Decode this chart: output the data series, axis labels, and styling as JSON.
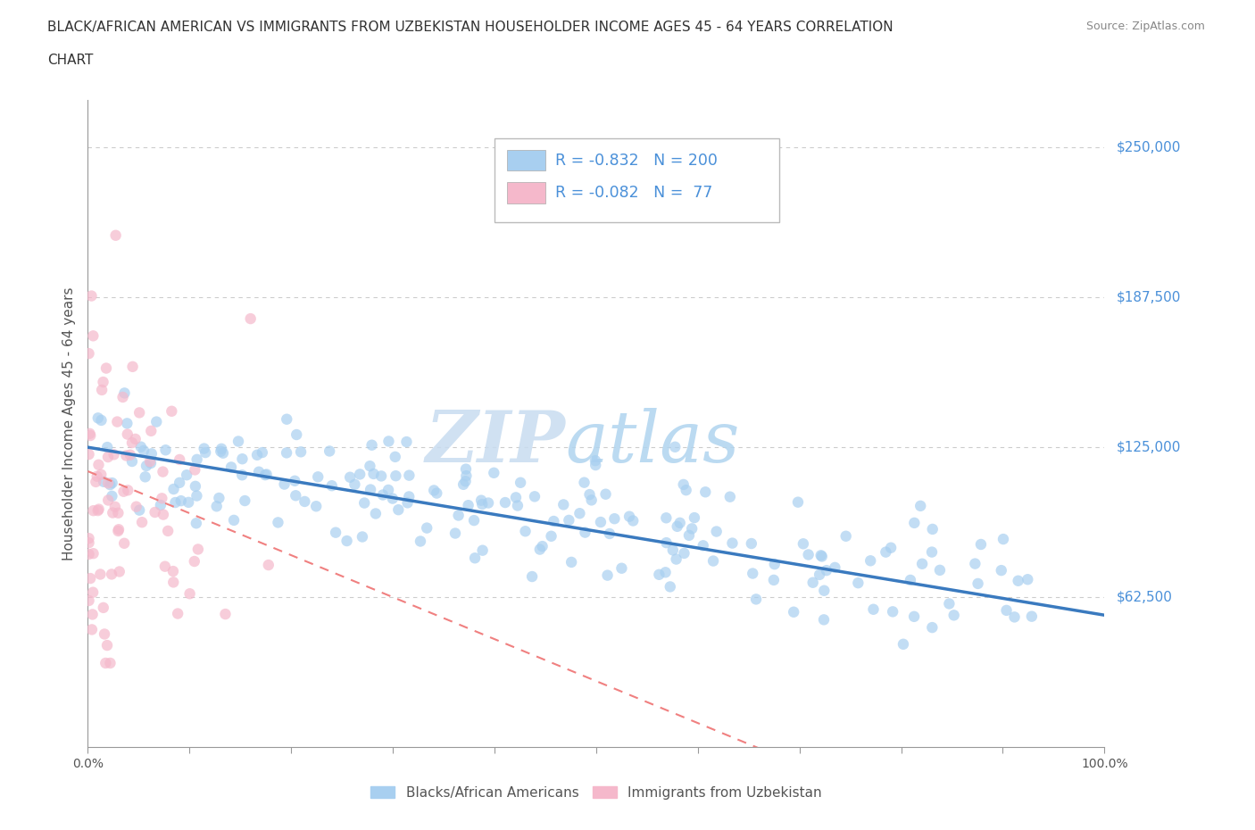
{
  "title_line1": "BLACK/AFRICAN AMERICAN VS IMMIGRANTS FROM UZBEKISTAN HOUSEHOLDER INCOME AGES 45 - 64 YEARS CORRELATION",
  "title_line2": "CHART",
  "source_text": "Source: ZipAtlas.com",
  "ylabel": "Householder Income Ages 45 - 64 years",
  "blue_R": -0.832,
  "blue_N": 200,
  "pink_R": -0.082,
  "pink_N": 77,
  "blue_color": "#a8cff0",
  "pink_color": "#f5b8cb",
  "blue_line_color": "#3a7abf",
  "pink_line_color": "#f08080",
  "watermark_zip": "ZIP",
  "watermark_atlas": "atlas",
  "watermark_color_zip": "#c5dff5",
  "watermark_color_atlas": "#b8dff5",
  "ytick_labels": [
    "$250,000",
    "$187,500",
    "$125,000",
    "$62,500"
  ],
  "ytick_values": [
    250000,
    187500,
    125000,
    62500
  ],
  "ymin": 0,
  "ymax": 270000,
  "xmin": 0.0,
  "xmax": 1.0,
  "legend_label_blue": "Blacks/African Americans",
  "legend_label_pink": "Immigrants from Uzbekistan",
  "background_color": "#ffffff",
  "grid_color": "#cccccc",
  "title_color": "#333333",
  "axis_label_color": "#555555",
  "ytick_color": "#4A90D9",
  "legend_text_color": "#4A90D9",
  "source_color": "#888888"
}
